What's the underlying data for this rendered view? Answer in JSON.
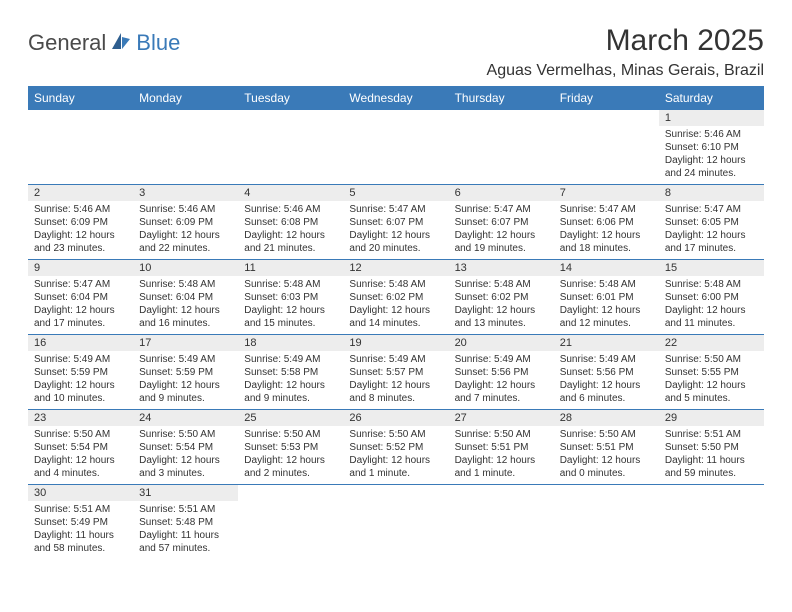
{
  "logo": {
    "text1": "General",
    "text2": "Blue"
  },
  "title": "March 2025",
  "location": "Aguas Vermelhas, Minas Gerais, Brazil",
  "colors": {
    "header_bg": "#3a7ab8",
    "header_text": "#ffffff",
    "daynum_bg": "#ededed",
    "border": "#3a7ab8",
    "text": "#333333",
    "logo_gray": "#4a4a4a",
    "logo_blue": "#3a7ab8"
  },
  "weekdays": [
    "Sunday",
    "Monday",
    "Tuesday",
    "Wednesday",
    "Thursday",
    "Friday",
    "Saturday"
  ],
  "weeks": [
    [
      null,
      null,
      null,
      null,
      null,
      null,
      {
        "n": "1",
        "sr": "Sunrise: 5:46 AM",
        "ss": "Sunset: 6:10 PM",
        "dl": "Daylight: 12 hours and 24 minutes."
      }
    ],
    [
      {
        "n": "2",
        "sr": "Sunrise: 5:46 AM",
        "ss": "Sunset: 6:09 PM",
        "dl": "Daylight: 12 hours and 23 minutes."
      },
      {
        "n": "3",
        "sr": "Sunrise: 5:46 AM",
        "ss": "Sunset: 6:09 PM",
        "dl": "Daylight: 12 hours and 22 minutes."
      },
      {
        "n": "4",
        "sr": "Sunrise: 5:46 AM",
        "ss": "Sunset: 6:08 PM",
        "dl": "Daylight: 12 hours and 21 minutes."
      },
      {
        "n": "5",
        "sr": "Sunrise: 5:47 AM",
        "ss": "Sunset: 6:07 PM",
        "dl": "Daylight: 12 hours and 20 minutes."
      },
      {
        "n": "6",
        "sr": "Sunrise: 5:47 AM",
        "ss": "Sunset: 6:07 PM",
        "dl": "Daylight: 12 hours and 19 minutes."
      },
      {
        "n": "7",
        "sr": "Sunrise: 5:47 AM",
        "ss": "Sunset: 6:06 PM",
        "dl": "Daylight: 12 hours and 18 minutes."
      },
      {
        "n": "8",
        "sr": "Sunrise: 5:47 AM",
        "ss": "Sunset: 6:05 PM",
        "dl": "Daylight: 12 hours and 17 minutes."
      }
    ],
    [
      {
        "n": "9",
        "sr": "Sunrise: 5:47 AM",
        "ss": "Sunset: 6:04 PM",
        "dl": "Daylight: 12 hours and 17 minutes."
      },
      {
        "n": "10",
        "sr": "Sunrise: 5:48 AM",
        "ss": "Sunset: 6:04 PM",
        "dl": "Daylight: 12 hours and 16 minutes."
      },
      {
        "n": "11",
        "sr": "Sunrise: 5:48 AM",
        "ss": "Sunset: 6:03 PM",
        "dl": "Daylight: 12 hours and 15 minutes."
      },
      {
        "n": "12",
        "sr": "Sunrise: 5:48 AM",
        "ss": "Sunset: 6:02 PM",
        "dl": "Daylight: 12 hours and 14 minutes."
      },
      {
        "n": "13",
        "sr": "Sunrise: 5:48 AM",
        "ss": "Sunset: 6:02 PM",
        "dl": "Daylight: 12 hours and 13 minutes."
      },
      {
        "n": "14",
        "sr": "Sunrise: 5:48 AM",
        "ss": "Sunset: 6:01 PM",
        "dl": "Daylight: 12 hours and 12 minutes."
      },
      {
        "n": "15",
        "sr": "Sunrise: 5:48 AM",
        "ss": "Sunset: 6:00 PM",
        "dl": "Daylight: 12 hours and 11 minutes."
      }
    ],
    [
      {
        "n": "16",
        "sr": "Sunrise: 5:49 AM",
        "ss": "Sunset: 5:59 PM",
        "dl": "Daylight: 12 hours and 10 minutes."
      },
      {
        "n": "17",
        "sr": "Sunrise: 5:49 AM",
        "ss": "Sunset: 5:59 PM",
        "dl": "Daylight: 12 hours and 9 minutes."
      },
      {
        "n": "18",
        "sr": "Sunrise: 5:49 AM",
        "ss": "Sunset: 5:58 PM",
        "dl": "Daylight: 12 hours and 9 minutes."
      },
      {
        "n": "19",
        "sr": "Sunrise: 5:49 AM",
        "ss": "Sunset: 5:57 PM",
        "dl": "Daylight: 12 hours and 8 minutes."
      },
      {
        "n": "20",
        "sr": "Sunrise: 5:49 AM",
        "ss": "Sunset: 5:56 PM",
        "dl": "Daylight: 12 hours and 7 minutes."
      },
      {
        "n": "21",
        "sr": "Sunrise: 5:49 AM",
        "ss": "Sunset: 5:56 PM",
        "dl": "Daylight: 12 hours and 6 minutes."
      },
      {
        "n": "22",
        "sr": "Sunrise: 5:50 AM",
        "ss": "Sunset: 5:55 PM",
        "dl": "Daylight: 12 hours and 5 minutes."
      }
    ],
    [
      {
        "n": "23",
        "sr": "Sunrise: 5:50 AM",
        "ss": "Sunset: 5:54 PM",
        "dl": "Daylight: 12 hours and 4 minutes."
      },
      {
        "n": "24",
        "sr": "Sunrise: 5:50 AM",
        "ss": "Sunset: 5:54 PM",
        "dl": "Daylight: 12 hours and 3 minutes."
      },
      {
        "n": "25",
        "sr": "Sunrise: 5:50 AM",
        "ss": "Sunset: 5:53 PM",
        "dl": "Daylight: 12 hours and 2 minutes."
      },
      {
        "n": "26",
        "sr": "Sunrise: 5:50 AM",
        "ss": "Sunset: 5:52 PM",
        "dl": "Daylight: 12 hours and 1 minute."
      },
      {
        "n": "27",
        "sr": "Sunrise: 5:50 AM",
        "ss": "Sunset: 5:51 PM",
        "dl": "Daylight: 12 hours and 1 minute."
      },
      {
        "n": "28",
        "sr": "Sunrise: 5:50 AM",
        "ss": "Sunset: 5:51 PM",
        "dl": "Daylight: 12 hours and 0 minutes."
      },
      {
        "n": "29",
        "sr": "Sunrise: 5:51 AM",
        "ss": "Sunset: 5:50 PM",
        "dl": "Daylight: 11 hours and 59 minutes."
      }
    ],
    [
      {
        "n": "30",
        "sr": "Sunrise: 5:51 AM",
        "ss": "Sunset: 5:49 PM",
        "dl": "Daylight: 11 hours and 58 minutes."
      },
      {
        "n": "31",
        "sr": "Sunrise: 5:51 AM",
        "ss": "Sunset: 5:48 PM",
        "dl": "Daylight: 11 hours and 57 minutes."
      },
      null,
      null,
      null,
      null,
      null
    ]
  ]
}
